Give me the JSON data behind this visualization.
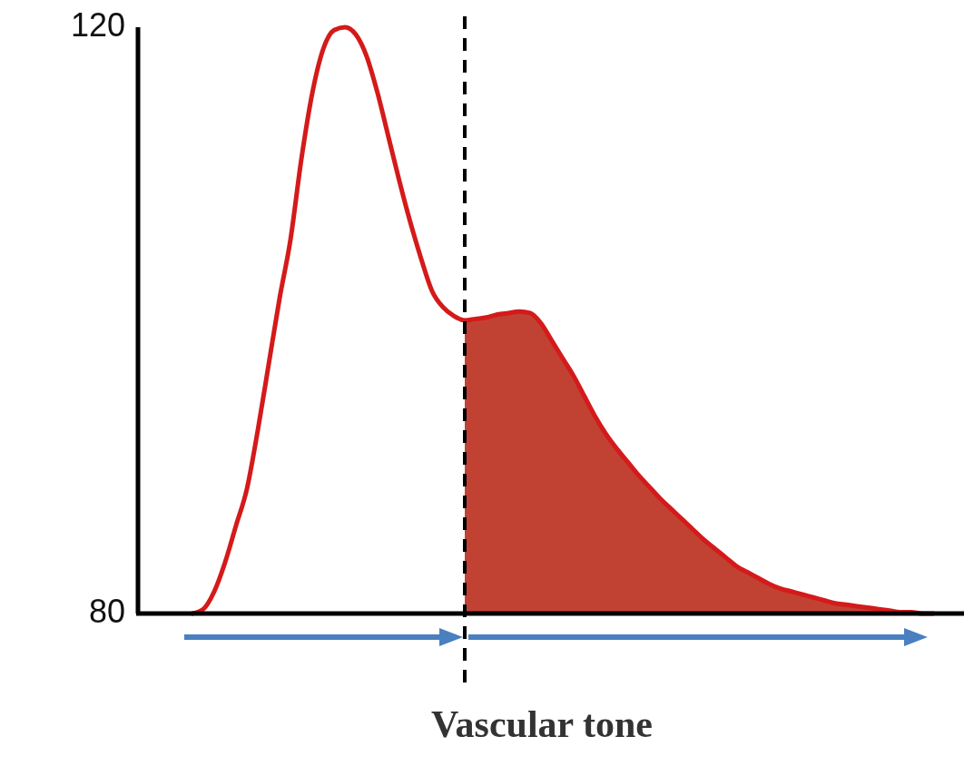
{
  "chart_data": {
    "type": "line",
    "xlabel": "Vascular tone",
    "categories": [
      null,
      null,
      null,
      null,
      null,
      null,
      null,
      null,
      null,
      null,
      null,
      null,
      null,
      null,
      null,
      null,
      null,
      null,
      null,
      null,
      null,
      null,
      null,
      null,
      null,
      null,
      null,
      null,
      null,
      null,
      null,
      null,
      null,
      null,
      null,
      null,
      null,
      null,
      null,
      null,
      null,
      null,
      null,
      null,
      null,
      null,
      null,
      null,
      null,
      null,
      null,
      null,
      null,
      null,
      null,
      null,
      null,
      null,
      null,
      null,
      null,
      null,
      null,
      null,
      null,
      null,
      null,
      null,
      null,
      null,
      null,
      null,
      null,
      null,
      null,
      null,
      null
    ],
    "series": [
      {
        "color": "#d41a1a",
        "values": [
          null,
          null,
          null,
          null,
          null,
          80,
          80.3,
          81.5,
          83.5,
          86,
          88.5,
          92.5,
          97,
          101.5,
          105.5,
          111,
          115.5,
          118.5,
          119.8,
          120,
          119.5,
          118,
          115.5,
          112.5,
          109.5,
          106.7,
          104.2,
          102,
          100.9,
          100.3,
          100,
          100.1,
          100.2,
          100.4,
          100.5,
          100.6,
          100.5,
          99.8,
          98.6,
          97.4,
          96.2,
          94.8,
          93.4,
          92.2,
          91.2,
          90.3,
          89.4,
          88.6,
          87.8,
          87.1,
          86.4,
          85.7,
          85,
          84.4,
          83.8,
          83.2,
          82.8,
          82.4,
          82,
          81.7,
          81.5,
          81.3,
          81.1,
          80.9,
          80.7,
          80.6,
          80.5,
          80.4,
          80.3,
          80.2,
          80.1,
          80.1,
          80,
          80,
          null,
          null,
          null
        ]
      },
      {
        "type": "area",
        "color": "#c14232",
        "values": [
          null,
          null,
          null,
          null,
          null,
          null,
          null,
          null,
          null,
          null,
          null,
          null,
          null,
          null,
          null,
          null,
          null,
          null,
          null,
          null,
          null,
          null,
          null,
          null,
          null,
          null,
          null,
          null,
          null,
          null,
          100,
          100.1,
          100.2,
          100.4,
          100.5,
          100.6,
          100.5,
          99.8,
          98.6,
          97.4,
          96.2,
          94.8,
          93.4,
          92.2,
          91.2,
          90.3,
          89.4,
          88.6,
          87.8,
          87.1,
          86.4,
          85.7,
          85,
          84.4,
          83.8,
          83.2,
          82.8,
          82.4,
          82,
          81.7,
          81.5,
          81.3,
          81.1,
          80.9,
          80.7,
          80.6,
          80.5,
          80.4,
          80.3,
          80.2,
          80.1,
          80.1,
          80,
          80,
          80,
          80,
          80
        ]
      }
    ],
    "ylim": [
      80,
      120
    ],
    "yticks": [
      80,
      120
    ],
    "grid": false
  }
}
